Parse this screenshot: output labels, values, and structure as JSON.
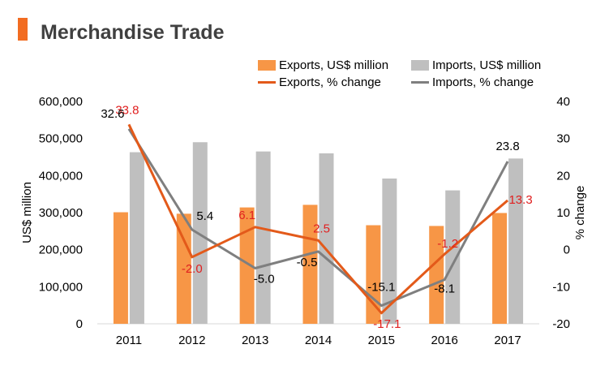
{
  "title": "Merchandise Trade",
  "colors": {
    "exports_bar": "#f79646",
    "imports_bar": "#bfbfbf",
    "exports_line": "#e35a1a",
    "imports_line": "#7f7f7f",
    "title_accent": "#f26c21",
    "exports_label": "#e02020",
    "imports_label": "#000000"
  },
  "legend": {
    "exports_bar": "Exports, US$ million",
    "imports_bar": "Imports, US$ million",
    "exports_line": "Exports, % change",
    "imports_line": "Imports, % change"
  },
  "chart_data": {
    "type": "bar",
    "categories": [
      "2011",
      "2012",
      "2013",
      "2014",
      "2015",
      "2016",
      "2017"
    ],
    "series": [
      {
        "name": "Exports, US$ million",
        "type": "bar",
        "axis": "left",
        "values": [
          301000,
          297000,
          314000,
          321000,
          266000,
          264000,
          299000
        ]
      },
      {
        "name": "Imports, US$ million",
        "type": "bar",
        "axis": "left",
        "values": [
          463000,
          490000,
          465000,
          460000,
          392000,
          360000,
          446000
        ]
      },
      {
        "name": "Exports, % change",
        "type": "line",
        "axis": "right",
        "values": [
          33.8,
          -2.0,
          6.1,
          2.5,
          -17.1,
          -1.2,
          13.3
        ],
        "labels": [
          "33.8",
          "-2.0",
          "6.1",
          "2.5",
          "-17.1",
          "-1.2",
          "13.3"
        ]
      },
      {
        "name": "Imports, % change",
        "type": "line",
        "axis": "right",
        "values": [
          32.6,
          5.4,
          -5.0,
          -0.5,
          -15.1,
          -8.1,
          23.8
        ],
        "labels": [
          "32.6",
          "5.4",
          "-5.0",
          "-0.5",
          "-15.1",
          "-8.1",
          "23.8"
        ]
      }
    ],
    "ylabel": "US$ million",
    "y2label": "% change",
    "ylim": [
      0,
      600000
    ],
    "y2lim": [
      -20,
      40
    ],
    "yticks": [
      "0",
      "100,000",
      "200,000",
      "300,000",
      "400,000",
      "500,000",
      "600,000"
    ],
    "y2ticks": [
      "-20",
      "-10",
      "0",
      "10",
      "20",
      "30",
      "40"
    ],
    "grid": false,
    "legend_position": "top-right"
  }
}
